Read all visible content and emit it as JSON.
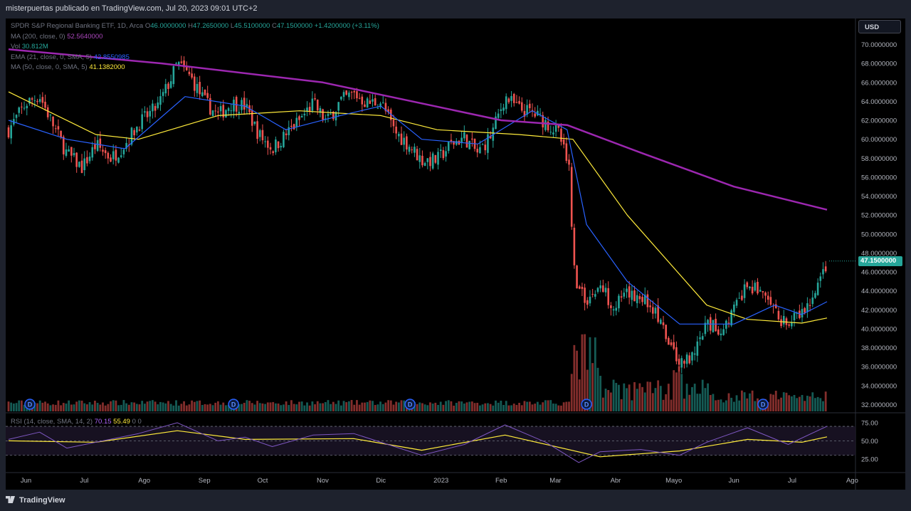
{
  "header": {
    "published": "misterpuertas publicado en TradingView.com, Jul 20, 2023 09:01 UTC+2"
  },
  "legend": {
    "symbol": "SPDR S&P Regional Banking ETF, 1D, Arca",
    "o_label": "O",
    "o_val": "46.0000000",
    "h_label": "H",
    "h_val": "47.2650000",
    "l_label": "L",
    "l_val": "45.5100000",
    "c_label": "C",
    "c_val": "47.1500000",
    "change": "+1.4200000 (+3.11%)",
    "ma200_label": "MA (200, close, 0)",
    "ma200_val": "52.5640000",
    "vol_label": "Vol",
    "vol_val": "30.812M",
    "ema_label": "EMA (21, close, 0, SMA, 5)",
    "ema_val": "42.8550985",
    "ma50_label": "MA (50, close, 0, SMA, 5)",
    "ma50_val": "41.1382000",
    "rsi_label": "RSI (14, close, SMA, 14, 2)",
    "rsi_val": "70.15",
    "rsi_ma_val": "55.49",
    "rsi_extra": "0  0"
  },
  "currency": "USD",
  "last_price": "47.1500000",
  "footer": {
    "brand": "TradingView"
  },
  "colors": {
    "up": "#26a69a",
    "down": "#ef5350",
    "ma200": "#9c27b0",
    "ema21": "#2962ff",
    "ma50": "#ffeb3b",
    "rsi": "#7e57c2"
  },
  "chart_data": {
    "type": "candlestick",
    "title": "SPDR S&P Regional Banking ETF, 1D, Arca",
    "y_axis": {
      "range": [
        31.5,
        71
      ],
      "ticks": [
        "70.0000000",
        "68.0000000",
        "66.0000000",
        "64.0000000",
        "62.0000000",
        "60.0000000",
        "58.0000000",
        "56.0000000",
        "54.0000000",
        "52.0000000",
        "50.0000000",
        "48.0000000",
        "46.0000000",
        "44.0000000",
        "42.0000000",
        "40.0000000",
        "38.0000000",
        "36.0000000",
        "34.0000000",
        "32.0000000"
      ]
    },
    "x_axis": {
      "ticks": [
        "Jun",
        "Jul",
        "Ago",
        "Sep",
        "Oct",
        "Nov",
        "Dic",
        "2023",
        "Feb",
        "Mar",
        "Abr",
        "Mayo",
        "Jun",
        "Jul",
        "Ago"
      ]
    },
    "rsi_axis": {
      "ticks": [
        "75.00",
        "50.00",
        "25.00"
      ],
      "bands": [
        70,
        50,
        30
      ]
    },
    "dividends": [
      "D",
      "D",
      "D",
      "D",
      "D"
    ],
    "price_path": [
      [
        "2022-05-23",
        61.0
      ],
      [
        "2022-06-01",
        63.8
      ],
      [
        "2022-06-08",
        64.6
      ],
      [
        "2022-06-15",
        61.5
      ],
      [
        "2022-06-22",
        58.5
      ],
      [
        "2022-06-30",
        57.0
      ],
      [
        "2022-07-07",
        59.4
      ],
      [
        "2022-07-15",
        58.0
      ],
      [
        "2022-07-22",
        59.5
      ],
      [
        "2022-07-29",
        61.6
      ],
      [
        "2022-08-08",
        63.5
      ],
      [
        "2022-08-15",
        66.5
      ],
      [
        "2022-08-18",
        68.0
      ],
      [
        "2022-08-25",
        66.5
      ],
      [
        "2022-09-01",
        64.0
      ],
      [
        "2022-09-08",
        62.5
      ],
      [
        "2022-09-15",
        63.8
      ],
      [
        "2022-09-22",
        63.5
      ],
      [
        "2022-09-29",
        60.5
      ],
      [
        "2022-10-06",
        59.0
      ],
      [
        "2022-10-13",
        60.5
      ],
      [
        "2022-10-20",
        62.0
      ],
      [
        "2022-10-27",
        63.8
      ],
      [
        "2022-11-03",
        61.8
      ],
      [
        "2022-11-10",
        64.0
      ],
      [
        "2022-11-17",
        64.8
      ],
      [
        "2022-11-24",
        63.8
      ],
      [
        "2022-12-01",
        64.0
      ],
      [
        "2022-12-08",
        60.8
      ],
      [
        "2022-12-15",
        59.5
      ],
      [
        "2022-12-22",
        57.8
      ],
      [
        "2022-12-30",
        57.8
      ],
      [
        "2023-01-06",
        59.5
      ],
      [
        "2023-01-13",
        60.2
      ],
      [
        "2023-01-20",
        58.5
      ],
      [
        "2023-01-27",
        60.5
      ],
      [
        "2023-02-03",
        64.5
      ],
      [
        "2023-02-10",
        63.2
      ],
      [
        "2023-02-17",
        62.8
      ],
      [
        "2023-02-24",
        61.8
      ],
      [
        "2023-03-03",
        60.5
      ],
      [
        "2023-03-08",
        56.6
      ],
      [
        "2023-03-10",
        47.0
      ],
      [
        "2023-03-13",
        44.0
      ],
      [
        "2023-03-17",
        43.0
      ],
      [
        "2023-03-24",
        44.5
      ],
      [
        "2023-03-31",
        42.5
      ],
      [
        "2023-04-07",
        43.5
      ],
      [
        "2023-04-14",
        43.5
      ],
      [
        "2023-04-21",
        42.0
      ],
      [
        "2023-04-28",
        38.5
      ],
      [
        "2023-05-04",
        36.5
      ],
      [
        "2023-05-11",
        36.8
      ],
      [
        "2023-05-18",
        40.5
      ],
      [
        "2023-05-25",
        39.8
      ],
      [
        "2023-06-01",
        42.0
      ],
      [
        "2023-06-08",
        44.5
      ],
      [
        "2023-06-15",
        44.0
      ],
      [
        "2023-06-22",
        41.5
      ],
      [
        "2023-06-29",
        40.5
      ],
      [
        "2023-07-06",
        41.5
      ],
      [
        "2023-07-13",
        43.5
      ],
      [
        "2023-07-19",
        47.15
      ]
    ],
    "ma200": [
      [
        "2022-05-23",
        69.5
      ],
      [
        "2022-08-10",
        68.0
      ],
      [
        "2022-11-01",
        66.0
      ],
      [
        "2023-02-01",
        62.0
      ],
      [
        "2023-03-07",
        61.5
      ],
      [
        "2023-04-15",
        58.5
      ],
      [
        "2023-06-01",
        55.0
      ],
      [
        "2023-07-19",
        52.56
      ]
    ],
    "ema21": [
      [
        "2022-05-23",
        62.0
      ],
      [
        "2022-06-22",
        60.0
      ],
      [
        "2022-07-22",
        59.0
      ],
      [
        "2022-08-22",
        64.5
      ],
      [
        "2022-09-22",
        63.5
      ],
      [
        "2022-10-13",
        61.0
      ],
      [
        "2022-11-10",
        62.5
      ],
      [
        "2022-12-01",
        63.5
      ],
      [
        "2022-12-22",
        60.0
      ],
      [
        "2023-01-20",
        59.5
      ],
      [
        "2023-02-17",
        63.0
      ],
      [
        "2023-03-07",
        61.0
      ],
      [
        "2023-03-17",
        51.0
      ],
      [
        "2023-04-07",
        45.0
      ],
      [
        "2023-05-04",
        40.5
      ],
      [
        "2023-06-01",
        40.5
      ],
      [
        "2023-06-22",
        42.5
      ],
      [
        "2023-07-06",
        41.5
      ],
      [
        "2023-07-19",
        42.86
      ]
    ],
    "ma50": [
      [
        "2022-05-23",
        65.0
      ],
      [
        "2022-07-07",
        60.5
      ],
      [
        "2022-07-29",
        60.0
      ],
      [
        "2022-09-08",
        62.5
      ],
      [
        "2022-10-20",
        63.0
      ],
      [
        "2022-12-01",
        62.5
      ],
      [
        "2022-12-30",
        61.0
      ],
      [
        "2023-02-10",
        60.5
      ],
      [
        "2023-03-10",
        60.0
      ],
      [
        "2023-04-07",
        52.0
      ],
      [
        "2023-05-18",
        42.5
      ],
      [
        "2023-06-08",
        41.0
      ],
      [
        "2023-07-06",
        40.6
      ],
      [
        "2023-07-19",
        41.14
      ]
    ],
    "rsi": [
      [
        "2022-05-23",
        52
      ],
      [
        "2022-06-08",
        62
      ],
      [
        "2022-06-22",
        40
      ],
      [
        "2022-07-07",
        48
      ],
      [
        "2022-07-29",
        60
      ],
      [
        "2022-08-18",
        75
      ],
      [
        "2022-09-08",
        50
      ],
      [
        "2022-09-22",
        55
      ],
      [
        "2022-10-06",
        42
      ],
      [
        "2022-10-27",
        58
      ],
      [
        "2022-11-17",
        60
      ],
      [
        "2022-12-08",
        42
      ],
      [
        "2022-12-22",
        30
      ],
      [
        "2023-01-13",
        45
      ],
      [
        "2023-02-03",
        72
      ],
      [
        "2023-02-24",
        48
      ],
      [
        "2023-03-13",
        20
      ],
      [
        "2023-03-24",
        35
      ],
      [
        "2023-04-14",
        38
      ],
      [
        "2023-05-04",
        30
      ],
      [
        "2023-05-18",
        48
      ],
      [
        "2023-06-08",
        68
      ],
      [
        "2023-06-29",
        45
      ],
      [
        "2023-07-19",
        70.15
      ]
    ],
    "rsi_ma": [
      [
        "2022-05-23",
        50
      ],
      [
        "2022-07-07",
        48
      ],
      [
        "2022-08-18",
        64
      ],
      [
        "2022-09-22",
        52
      ],
      [
        "2022-11-17",
        53
      ],
      [
        "2022-12-22",
        37
      ],
      [
        "2023-02-03",
        58
      ],
      [
        "2023-03-24",
        28
      ],
      [
        "2023-05-04",
        36
      ],
      [
        "2023-06-08",
        52
      ],
      [
        "2023-07-06",
        48
      ],
      [
        "2023-07-19",
        55.49
      ]
    ]
  }
}
